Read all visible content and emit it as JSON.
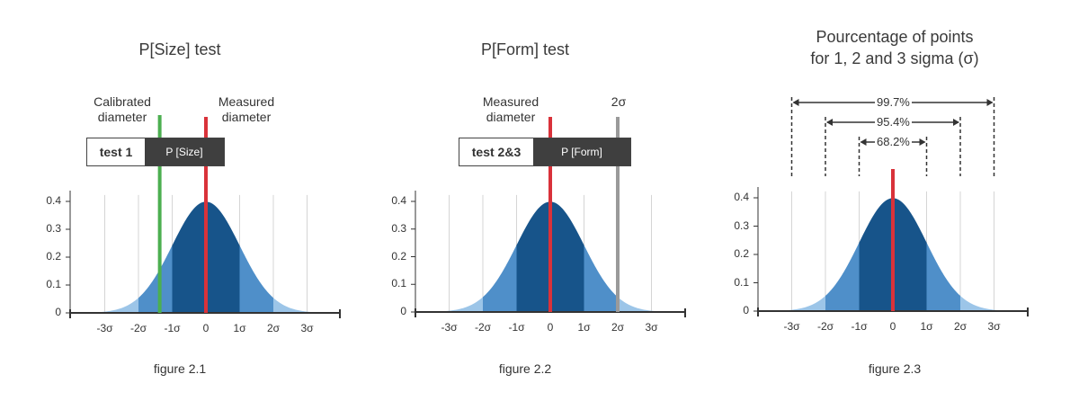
{
  "panels": [
    {
      "title": "P[Size] test",
      "caption": "figure 2.1",
      "labels": {
        "calibrated": "Calibrated\ndiameter",
        "measured": "Measured\ndiameter"
      },
      "box": {
        "left_text": "test 1",
        "right_text": "P [Size]"
      }
    },
    {
      "title": "P[Form] test",
      "caption": "figure 2.2",
      "labels": {
        "measured": "Measured\ndiameter",
        "two_sigma": "2σ"
      },
      "box": {
        "left_text": "test 2&3",
        "right_text": "P [Form]"
      }
    },
    {
      "title_line1": "Pourcentage of points",
      "title_line2": "for 1, 2 and 3 sigma (σ)",
      "caption": "figure 2.3",
      "percentages": [
        "99.7%",
        "95.4%",
        "68.2%"
      ]
    }
  ],
  "axis": {
    "x_ticks": [
      "-3σ",
      "-2σ",
      "-1σ",
      "0",
      "1σ",
      "2σ",
      "3σ"
    ],
    "y_ticks": [
      "0",
      "0.1",
      "0.2",
      "0.3",
      "0.4"
    ]
  },
  "colors": {
    "dark_blue": "#17548a",
    "mid_blue": "#4f8fc9",
    "light_blue": "#9cc5e8",
    "red": "#d9323a",
    "green": "#4caf50",
    "grey": "#9a9a9a"
  }
}
